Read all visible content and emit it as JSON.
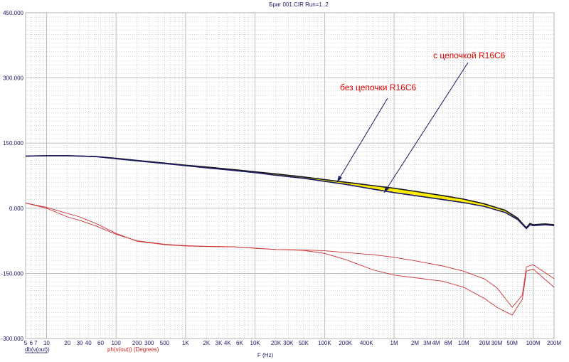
{
  "chart_data": {
    "type": "line",
    "title": "Бриг 001.CIR Run=1..2",
    "xlabel": "F (Hz)",
    "x_scale": "log",
    "xlim": [
      5,
      200000000
    ],
    "ylim": [
      -300,
      450
    ],
    "grid": true,
    "y_ticks": [
      -300,
      -150,
      0,
      150,
      300,
      450
    ],
    "y_tick_labels": [
      "-300.000",
      "-150.000",
      "0.000",
      "150.000",
      "300.000",
      "450.000"
    ],
    "x_ticks": [
      5,
      6,
      7,
      10,
      20,
      30,
      40,
      60,
      100,
      200,
      300,
      500,
      1000,
      2000,
      3000,
      4000,
      6000,
      10000,
      20000,
      30000,
      50000,
      100000,
      200000,
      400000,
      1000000,
      2000000,
      3000000,
      4000000,
      6000000,
      10000000,
      20000000,
      30000000,
      50000000,
      100000000,
      200000000
    ],
    "x_tick_labels": [
      "5",
      "6",
      "7",
      "10",
      "20",
      "30",
      "40",
      "60",
      "100",
      "200",
      "300",
      "500",
      "1K",
      "2K",
      "3K",
      "4K",
      "6K",
      "10K",
      "20K",
      "30K",
      "50K",
      "100K",
      "200K",
      "400K",
      "1M",
      "2M",
      "3M",
      "4M",
      "6M",
      "10M",
      "20M",
      "30M",
      "50M",
      "100M",
      "200M"
    ],
    "legend": [
      {
        "text": "db(v(out))",
        "color": "#1a1a66"
      },
      {
        "text": "ph(v(out)) (Degrees)",
        "color": "#cc2222"
      }
    ],
    "colors": {
      "background": "#ffffff",
      "grid": "#b4b4b4",
      "axis_text": "#1a1a66",
      "gain_upper": "#1a1a1a",
      "gain_lower": "#1a1a66",
      "gain_fill": "#ffee00",
      "phase": "#cc3333",
      "annotation": "#e00000",
      "arrow": "#1a1a66"
    },
    "series": [
      {
        "name": "db(v(out))",
        "x": [
          5,
          10,
          20,
          50,
          100,
          200,
          500,
          1000,
          2000,
          5000,
          10000,
          20000,
          50000,
          100000,
          200000,
          500000,
          1000000,
          2000000,
          5000000,
          10000000,
          20000000,
          40000000,
          60000000,
          70000000,
          80000000,
          90000000,
          100000000,
          150000000,
          200000000
        ],
        "y": [
          120,
          121,
          121,
          119,
          115,
          110,
          104,
          99,
          95,
          89,
          84,
          79,
          72,
          66,
          60,
          52,
          46,
          39,
          29,
          21,
          10,
          -5,
          -23,
          -35,
          -45,
          -35,
          -38,
          -36,
          -38
        ]
      },
      {
        "name": "db(v(out))",
        "x": [
          5,
          10,
          20,
          50,
          100,
          200,
          500,
          1000,
          2000,
          5000,
          10000,
          20000,
          50000,
          100000,
          200000,
          500000,
          1000000,
          2000000,
          5000000,
          10000000,
          20000000,
          40000000,
          60000000,
          70000000,
          80000000,
          90000000,
          100000000,
          150000000,
          200000000
        ],
        "y": [
          120,
          121,
          121,
          119,
          114,
          109,
          103,
          98,
          93,
          87,
          82,
          76,
          69,
          62,
          55,
          44,
          36,
          29,
          20,
          13,
          4,
          -10,
          -26,
          -37,
          -47,
          -38,
          -40,
          -38,
          -40
        ]
      },
      {
        "name": "ph(v(out)) (Degrees)",
        "x": [
          5,
          10,
          20,
          30,
          50,
          100,
          200,
          500,
          1000,
          2000,
          5000,
          10000,
          20000,
          50000,
          100000,
          200000,
          500000,
          1000000,
          2000000,
          5000000,
          10000000,
          20000000,
          30000000,
          50000000,
          70000000,
          80000000,
          100000000,
          200000000
        ],
        "y": [
          12,
          0,
          -20,
          -28,
          -40,
          -60,
          -75,
          -83,
          -86,
          -88,
          -89,
          -92,
          -95,
          -96,
          -98,
          -102,
          -107,
          -113,
          -121,
          -133,
          -145,
          -163,
          -183,
          -228,
          -200,
          -135,
          -130,
          -162
        ]
      },
      {
        "name": "ph(v(out)) (Degrees)",
        "x": [
          5,
          10,
          20,
          30,
          50,
          100,
          200,
          500,
          1000,
          2000,
          5000,
          10000,
          20000,
          50000,
          100000,
          200000,
          500000,
          1000000,
          2000000,
          5000000,
          10000000,
          20000000,
          30000000,
          50000000,
          70000000,
          80000000,
          100000000,
          200000000
        ],
        "y": [
          12,
          2,
          -12,
          -20,
          -34,
          -58,
          -76,
          -84,
          -87,
          -88,
          -89,
          -92,
          -95,
          -97,
          -104,
          -118,
          -142,
          -154,
          -160,
          -168,
          -182,
          -208,
          -228,
          -246,
          -210,
          -145,
          -140,
          -182
        ]
      }
    ],
    "annotations": [
      {
        "text": "без цепочки R16C6"
      },
      {
        "text": "с цепочкой R16C6"
      }
    ]
  }
}
